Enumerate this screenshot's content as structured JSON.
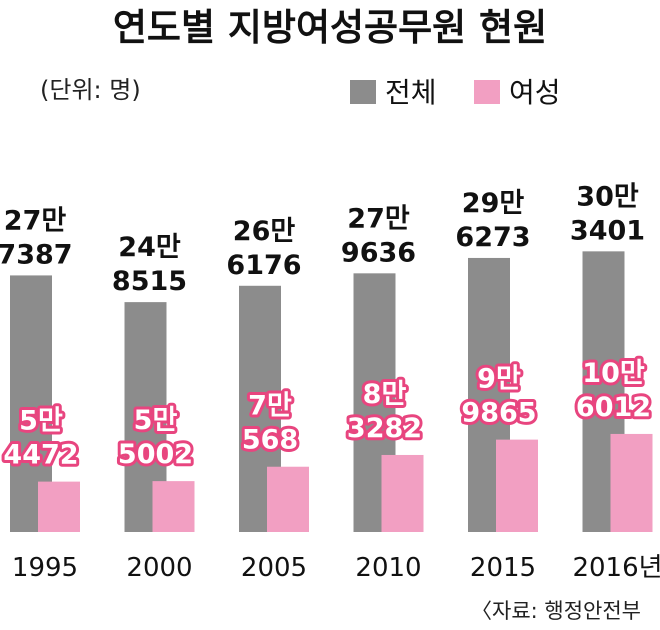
{
  "chart_data": {
    "type": "bar",
    "title": "연도별 지방여성공무원 현원",
    "unit_note": "(단위: 명)",
    "source": "〈자료: 행정안전부",
    "categories": [
      "1995",
      "2000",
      "2005",
      "2010",
      "2015",
      "2016년"
    ],
    "series": [
      {
        "name": "전체",
        "color": "#8c8c8c",
        "values": [
          277387,
          248515,
          266176,
          279636,
          296273,
          303401
        ],
        "labels": [
          [
            "27만",
            "7387"
          ],
          [
            "24만",
            "8515"
          ],
          [
            "26만",
            "6176"
          ],
          [
            "27만",
            "9636"
          ],
          [
            "29만",
            "6273"
          ],
          [
            "30만",
            "3401"
          ]
        ]
      },
      {
        "name": "여성",
        "color": "#f29fc2",
        "values": [
          54472,
          55002,
          70568,
          83282,
          99865,
          106012
        ],
        "labels": [
          [
            "5만",
            "4472"
          ],
          [
            "5만",
            "5002"
          ],
          [
            "7만",
            "568"
          ],
          [
            "8만",
            "3282"
          ],
          [
            "9만",
            "9865"
          ],
          [
            "10만",
            "6012"
          ]
        ]
      }
    ],
    "label_halo_color": "#e8457f",
    "legend_position": "top-right",
    "grid": false
  }
}
